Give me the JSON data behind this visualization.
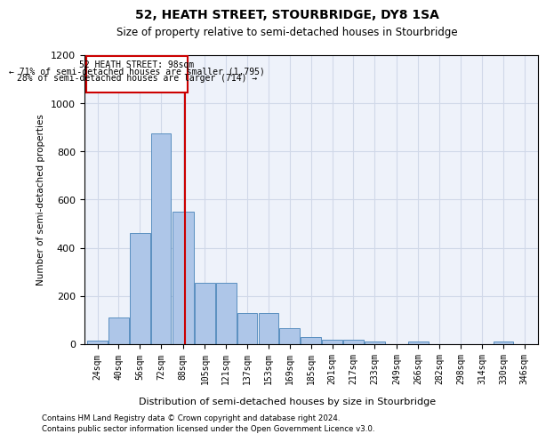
{
  "title": "52, HEATH STREET, STOURBRIDGE, DY8 1SA",
  "subtitle": "Size of property relative to semi-detached houses in Stourbridge",
  "xlabel": "Distribution of semi-detached houses by size in Stourbridge",
  "ylabel": "Number of semi-detached properties",
  "property_label": "52 HEATH STREET: 98sqm",
  "pct_smaller": 71,
  "n_smaller": 1795,
  "pct_larger": 28,
  "n_larger": 714,
  "bin_labels": [
    "24sqm",
    "40sqm",
    "56sqm",
    "72sqm",
    "88sqm",
    "105sqm",
    "121sqm",
    "137sqm",
    "153sqm",
    "169sqm",
    "185sqm",
    "201sqm",
    "217sqm",
    "233sqm",
    "249sqm",
    "266sqm",
    "282sqm",
    "298sqm",
    "314sqm",
    "330sqm",
    "346sqm"
  ],
  "bin_edges": [
    24,
    40,
    56,
    72,
    88,
    105,
    121,
    137,
    153,
    169,
    185,
    201,
    217,
    233,
    249,
    266,
    282,
    298,
    314,
    330,
    346,
    362
  ],
  "counts": [
    15,
    110,
    460,
    875,
    550,
    255,
    255,
    130,
    130,
    65,
    30,
    20,
    20,
    10,
    0,
    10,
    0,
    0,
    0,
    10,
    0
  ],
  "bar_color": "#aec6e8",
  "bar_edge_color": "#5a8fc0",
  "vline_x": 98,
  "vline_color": "#cc0000",
  "annotation_box_color": "#cc0000",
  "grid_color": "#d0d8e8",
  "background_color": "#eef2fa",
  "ylim": [
    0,
    1200
  ],
  "yticks": [
    0,
    200,
    400,
    600,
    800,
    1000,
    1200
  ],
  "footer_line1": "Contains HM Land Registry data © Crown copyright and database right 2024.",
  "footer_line2": "Contains public sector information licensed under the Open Government Licence v3.0."
}
